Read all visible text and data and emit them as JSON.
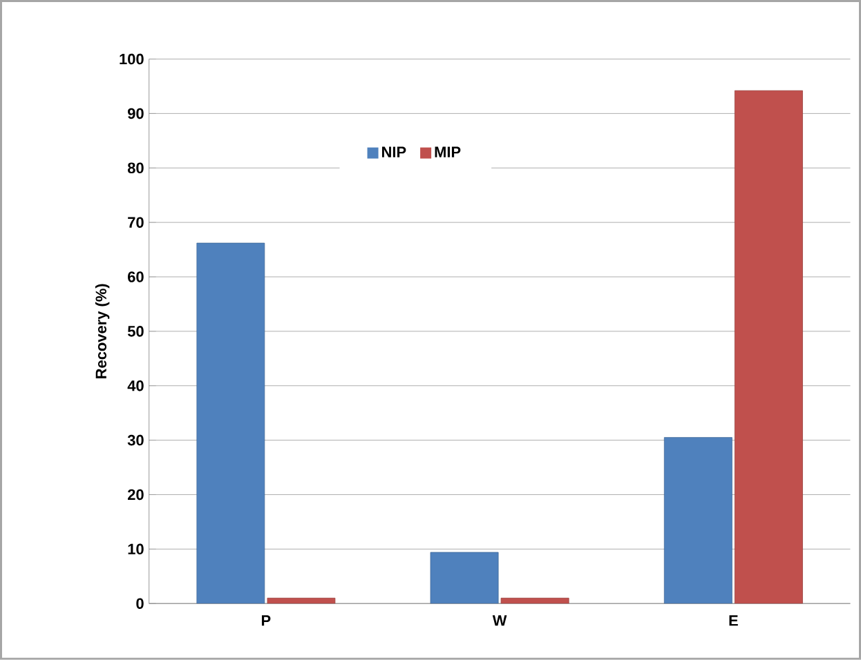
{
  "chart_data": {
    "type": "bar",
    "ylabel": "Recovery  (%)",
    "categories": [
      "P",
      "W",
      "E"
    ],
    "series": [
      {
        "name": "NIP",
        "color": "#4f81bd",
        "values": [
          66.2,
          9.4,
          30.5
        ]
      },
      {
        "name": "MIP",
        "color": "#c0504d",
        "values": [
          1.0,
          1.0,
          94.2
        ]
      }
    ],
    "ylim": [
      0,
      100
    ],
    "yticks": [
      0,
      10,
      20,
      30,
      40,
      50,
      60,
      70,
      80,
      90,
      100
    ],
    "grid": "y",
    "legend": "top"
  }
}
